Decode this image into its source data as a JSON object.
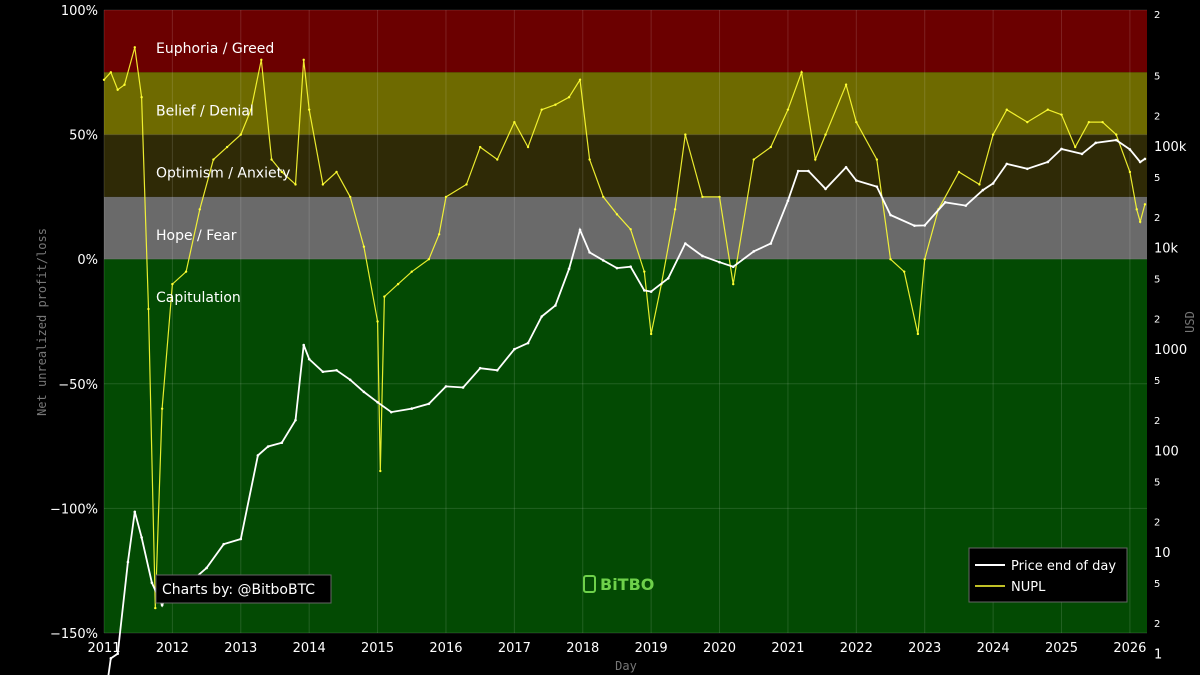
{
  "chart_data": {
    "type": "line",
    "title": "",
    "xlabel": "Day",
    "ylabel": "Net unrealized profit/loss",
    "y2label": "USD",
    "xlim": [
      2011.0,
      2026.25
    ],
    "ylim": [
      -150,
      100
    ],
    "y2lim_log": [
      1.6,
      2200000
    ],
    "y_scale": "linear",
    "y2_scale": "log",
    "grid": true,
    "legend_position": "bottom-right",
    "x_ticks": [
      "2011",
      "2012",
      "2013",
      "2014",
      "2015",
      "2016",
      "2017",
      "2018",
      "2019",
      "2020",
      "2021",
      "2022",
      "2023",
      "2024",
      "2025",
      "2026"
    ],
    "y_ticks": [
      "100%",
      "50%",
      "0%",
      "−50%",
      "−100%",
      "−150%"
    ],
    "y2_major_ticks": [
      "100k",
      "10k",
      "1000",
      "100",
      "10",
      "1"
    ],
    "y2_minor_tick_label_2": "2",
    "y2_minor_tick_label_5": "5",
    "zones": [
      {
        "label": "Euphoria / Greed",
        "from": 75,
        "to": 100,
        "color": "#6b0000"
      },
      {
        "label": "Belief / Denial",
        "from": 50,
        "to": 75,
        "color": "#6e6a00"
      },
      {
        "label": "Optimism / Anxiety",
        "from": 25,
        "to": 50,
        "color": "#2f2a06"
      },
      {
        "label": "Hope / Fear",
        "from": 0,
        "to": 25,
        "color": "#6a6a6a"
      },
      {
        "label": "Capitulation",
        "from": -150,
        "to": 0,
        "color": "#034a03"
      }
    ],
    "series": [
      {
        "name": "Price end of day",
        "axis": "right",
        "color": "#ffffff",
        "x": [
          2011.0,
          2011.1,
          2011.2,
          2011.35,
          2011.45,
          2011.55,
          2011.7,
          2011.85,
          2012.0,
          2012.25,
          2012.5,
          2012.75,
          2013.0,
          2013.25,
          2013.4,
          2013.6,
          2013.8,
          2013.92,
          2014.0,
          2014.2,
          2014.4,
          2014.6,
          2014.8,
          2015.0,
          2015.2,
          2015.5,
          2015.75,
          2016.0,
          2016.25,
          2016.5,
          2016.75,
          2017.0,
          2017.2,
          2017.4,
          2017.6,
          2017.8,
          2017.96,
          2018.1,
          2018.3,
          2018.5,
          2018.7,
          2018.9,
          2019.0,
          2019.25,
          2019.5,
          2019.75,
          2020.0,
          2020.2,
          2020.5,
          2020.75,
          2021.0,
          2021.15,
          2021.3,
          2021.55,
          2021.85,
          2022.0,
          2022.3,
          2022.5,
          2022.85,
          2023.0,
          2023.3,
          2023.6,
          2023.85,
          2024.0,
          2024.2,
          2024.5,
          2024.8,
          2025.0,
          2025.3,
          2025.5,
          2025.8,
          2026.0,
          2026.15,
          2026.22
        ],
        "values": [
          0.3,
          0.9,
          1.0,
          8.0,
          25.0,
          14.0,
          5.0,
          3.0,
          5.0,
          5.0,
          7.0,
          12.0,
          13.5,
          90.0,
          110.0,
          120.0,
          200.0,
          1100.0,
          800.0,
          600.0,
          620.0,
          500.0,
          380.0,
          300.0,
          240.0,
          260.0,
          290.0,
          430.0,
          420.0,
          650.0,
          620.0,
          1000.0,
          1150.0,
          2100.0,
          2700.0,
          6200.0,
          15000.0,
          9000.0,
          7500.0,
          6300.0,
          6500.0,
          3800.0,
          3700.0,
          5000.0,
          11000.0,
          8300.0,
          7200.0,
          6500.0,
          9200.0,
          11000.0,
          29000.0,
          57000.0,
          57000.0,
          38000.0,
          62000.0,
          46000.0,
          40000.0,
          21000.0,
          16500.0,
          16600.0,
          28000.0,
          26000.0,
          37000.0,
          43000.0,
          67000.0,
          60000.0,
          70000.0,
          94000.0,
          84000.0,
          108000.0,
          115000.0,
          93000.0,
          70000.0,
          75000.0
        ]
      },
      {
        "name": "NUPL",
        "axis": "left",
        "color": "#ffff33",
        "x": [
          2011.0,
          2011.1,
          2011.2,
          2011.3,
          2011.45,
          2011.55,
          2011.65,
          2011.75,
          2011.85,
          2012.0,
          2012.2,
          2012.4,
          2012.6,
          2012.8,
          2013.0,
          2013.15,
          2013.3,
          2013.45,
          2013.6,
          2013.8,
          2013.92,
          2014.0,
          2014.2,
          2014.4,
          2014.6,
          2014.8,
          2015.0,
          2015.04,
          2015.1,
          2015.3,
          2015.5,
          2015.75,
          2015.9,
          2016.0,
          2016.3,
          2016.5,
          2016.75,
          2017.0,
          2017.2,
          2017.4,
          2017.6,
          2017.8,
          2017.96,
          2018.1,
          2018.3,
          2018.5,
          2018.7,
          2018.9,
          2019.0,
          2019.15,
          2019.35,
          2019.5,
          2019.75,
          2020.0,
          2020.2,
          2020.5,
          2020.75,
          2021.0,
          2021.2,
          2021.4,
          2021.55,
          2021.85,
          2022.0,
          2022.3,
          2022.5,
          2022.7,
          2022.9,
          2023.0,
          2023.2,
          2023.5,
          2023.8,
          2024.0,
          2024.2,
          2024.5,
          2024.8,
          2025.0,
          2025.2,
          2025.4,
          2025.6,
          2025.8,
          2026.0,
          2026.1,
          2026.15,
          2026.22
        ],
        "values": [
          72.0,
          75.0,
          68.0,
          70.0,
          85.0,
          65.0,
          -20.0,
          -140.0,
          -60.0,
          -10.0,
          -5.0,
          20.0,
          40.0,
          45.0,
          50.0,
          60.0,
          80.0,
          40.0,
          35.0,
          30.0,
          80.0,
          60.0,
          30.0,
          35.0,
          25.0,
          5.0,
          -25.0,
          -85.0,
          -15.0,
          -10.0,
          -5.0,
          0.0,
          10.0,
          25.0,
          30.0,
          45.0,
          40.0,
          55.0,
          45.0,
          60.0,
          62.0,
          65.0,
          72.0,
          40.0,
          25.0,
          18.0,
          12.0,
          -5.0,
          -30.0,
          -10.0,
          20.0,
          50.0,
          25.0,
          25.0,
          -10.0,
          40.0,
          45.0,
          60.0,
          75.0,
          40.0,
          50.0,
          70.0,
          55.0,
          40.0,
          0.0,
          -5.0,
          -30.0,
          0.0,
          20.0,
          35.0,
          30.0,
          50.0,
          60.0,
          55.0,
          60.0,
          58.0,
          45.0,
          55.0,
          55.0,
          50.0,
          35.0,
          20.0,
          15.0,
          22.0
        ]
      }
    ]
  },
  "legend": {
    "items": [
      {
        "label": "Price end of day",
        "color": "#ffffff"
      },
      {
        "label": "NUPL",
        "color": "#ffff33"
      }
    ]
  },
  "credit": {
    "text": "Charts by: @BitboBTC"
  },
  "logo": {
    "text": "BiTBO",
    "color": "#6ed14a"
  }
}
